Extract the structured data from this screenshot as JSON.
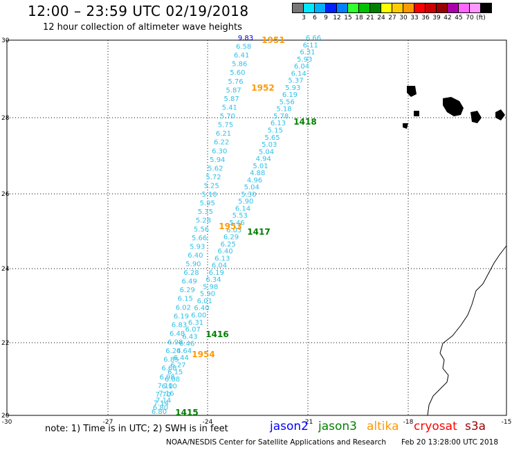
{
  "title": "12:00 – 23:59 UTC 02/19/2018",
  "subtitle": "12 hour collection of altimeter wave heights",
  "legend": {
    "unit": "(ft)",
    "colors": [
      "#777777",
      "#00e8ff",
      "#00b0ff",
      "#0020ff",
      "#0080ff",
      "#30ff30",
      "#00c000",
      "#008000",
      "#ffff00",
      "#ffcc00",
      "#ff9900",
      "#ff0000",
      "#cc0000",
      "#990000",
      "#aa00aa",
      "#ff66ff",
      "#ff99ff",
      "#000000"
    ],
    "labels": [
      "3",
      "6",
      "9",
      "12",
      "15",
      "18",
      "21",
      "24",
      "27",
      "30",
      "33",
      "36",
      "39",
      "42",
      "45",
      "70"
    ]
  },
  "axes": {
    "x_ticks": [
      "-30",
      "-27",
      "-24",
      "-21",
      "-18",
      "-15"
    ],
    "y_ticks": [
      "30",
      "28",
      "26",
      "24",
      "22",
      "20"
    ]
  },
  "tracks": [
    {
      "id": "1951",
      "color": "#ff9900"
    },
    {
      "id": "1952",
      "color": "#ff9900"
    },
    {
      "id": "1418",
      "color": "#008000"
    },
    {
      "id": "1953",
      "color": "#ff9900"
    },
    {
      "id": "1417",
      "color": "#008000"
    },
    {
      "id": "1416",
      "color": "#008000"
    },
    {
      "id": "1954",
      "color": "#ff9900"
    },
    {
      "id": "1415",
      "color": "#008000"
    }
  ],
  "track_a_values": [
    "6.66",
    "6.11",
    "6.31",
    "5.93",
    "6.04",
    "6.14",
    "5.37",
    "5.93",
    "6.19",
    "5.56",
    "5.18",
    "5.78",
    "6.13",
    "5.15",
    "5.65",
    "5.03",
    "5.04",
    "4.94",
    "5.01",
    "4.88",
    "4.96",
    "5.04",
    "5.30",
    "5.90",
    "6.14",
    "5.53",
    "5.46",
    "6.03",
    "6.29",
    "6.25",
    "6.40",
    "6.13",
    "6.04",
    "6.19",
    "6.34",
    "5.98",
    "5.90",
    "6.01",
    "6.40",
    "6.00",
    "6.31",
    "6.07",
    "6.43",
    "6.46",
    "6.64",
    "6.44",
    "6.27",
    "6.15",
    "6.08",
    "6.10",
    "7.16",
    "7.14",
    "6.80"
  ],
  "track_b_values": [
    "9.83",
    "6.58",
    "6.41",
    "5.86",
    "5.60",
    "5.76",
    "5.87",
    "5.87",
    "5.41",
    "5.70",
    "5.75",
    "6.21",
    "6.22",
    "6.30",
    "5.94",
    "5.62",
    "5.72",
    "5.25",
    "5.10",
    "5.95",
    "5.35",
    "5.28",
    "5.56",
    "5.66",
    "5.93",
    "6.40",
    "5.90",
    "6.28",
    "6.49",
    "6.29",
    "6.15",
    "6.02",
    "6.19",
    "6.83",
    "6.48",
    "6.98",
    "6.24",
    "6.85",
    "6.68",
    "6.98",
    "7.10",
    "7.70",
    "7.14",
    "6.80"
  ],
  "note": "note: 1) Time is in UTC; 2) SWH is in feet",
  "satellites": [
    {
      "name": "jason2",
      "color": "#0000ff"
    },
    {
      "name": "jason3",
      "color": "#008000"
    },
    {
      "name": "altika",
      "color": "#ff9900"
    },
    {
      "name": "cryosat",
      "color": "#ff0000"
    },
    {
      "name": "s3a",
      "color": "#990000"
    }
  ],
  "footer": "NOAA/NESDIS Center for Satellite Applications and Research",
  "footer_time": "Feb 20 13:28:00 UTC 2018"
}
